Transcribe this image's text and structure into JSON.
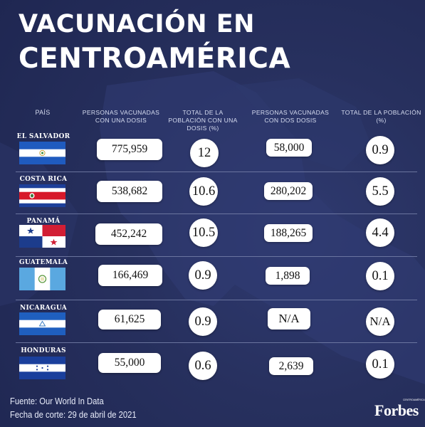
{
  "title_line1": "VACUNACIÓN EN",
  "title_line2": "CENTROAMÉRICA",
  "headers": {
    "country": "PAÍS",
    "one_dose": "PERSONAS VACUNADAS CON UNA DOSIS",
    "one_dose_pct": "TOTAL DE LA POBLACIÓN CON UNA DOSIS (%)",
    "two_dose": "PERSONAS VACUNADAS CON DOS DOSIS",
    "two_dose_pct": "TOTAL DE LA POBLACIÓN (%)"
  },
  "rows": [
    {
      "country": "EL SALVADOR",
      "one_dose": "775,959",
      "one_dose_pct": "12",
      "two_dose": "58,000",
      "two_dose_pct": "0.9"
    },
    {
      "country": "COSTA RICA",
      "one_dose": "538,682",
      "one_dose_pct": "10.6",
      "two_dose": "280,202",
      "two_dose_pct": "5.5"
    },
    {
      "country": "PANAMÁ",
      "one_dose": "452,242",
      "one_dose_pct": "10.5",
      "two_dose": "188,265",
      "two_dose_pct": "4.4"
    },
    {
      "country": "GUATEMALA",
      "one_dose": "166,469",
      "one_dose_pct": "0.9",
      "two_dose": "1,898",
      "two_dose_pct": "0.1"
    },
    {
      "country": "NICARAGUA",
      "one_dose": "61,625",
      "one_dose_pct": "0.9",
      "two_dose": "N/A",
      "two_dose_pct": "N/A"
    },
    {
      "country": "HONDURAS",
      "one_dose": "55,000",
      "one_dose_pct": "0.6",
      "two_dose": "2,639",
      "two_dose_pct": "0.1"
    }
  ],
  "source": "Fuente: Our World In Data",
  "cutoff": "Fecha de corte: 29 de abril de 2021",
  "brand": "Forbes",
  "brand_sub": "CENTROAMÉRICA",
  "colors": {
    "background": "#263060",
    "map": "#323d74",
    "text": "#ffffff"
  }
}
